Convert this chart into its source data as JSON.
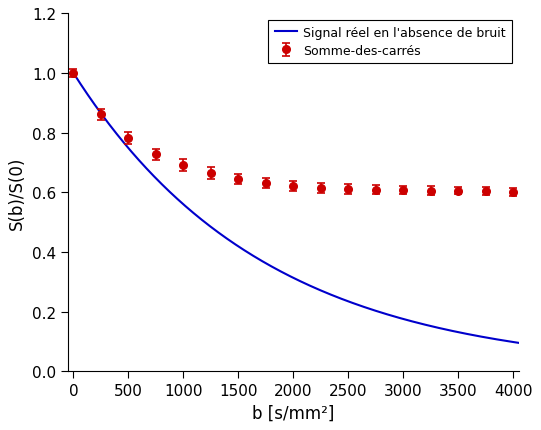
{
  "scatter_b": [
    0,
    250,
    500,
    750,
    1000,
    1250,
    1500,
    1750,
    2000,
    2250,
    2500,
    2750,
    3000,
    3250,
    3500,
    3750,
    4000
  ],
  "scatter_S": [
    1.0,
    0.862,
    0.783,
    0.728,
    0.692,
    0.665,
    0.645,
    0.632,
    0.622,
    0.615,
    0.612,
    0.608,
    0.607,
    0.606,
    0.606,
    0.604,
    0.602
  ],
  "scatter_err": [
    0.013,
    0.018,
    0.02,
    0.018,
    0.02,
    0.02,
    0.018,
    0.016,
    0.016,
    0.016,
    0.016,
    0.015,
    0.014,
    0.014,
    0.013,
    0.013,
    0.013
  ],
  "scatter_color": "#cc0000",
  "scatter_label": "Somme-des-carrés",
  "line_color": "#0000cc",
  "line_label": "Signal réel en l'absence de bruit",
  "D": 0.00058,
  "xlabel": "b [s/mm²]",
  "ylabel": "S(b)/S(0)",
  "xlim": [
    -50,
    4050
  ],
  "ylim": [
    0,
    1.2
  ],
  "xticks": [
    0,
    500,
    1000,
    1500,
    2000,
    2500,
    3000,
    3500,
    4000
  ],
  "yticks": [
    0,
    0.2,
    0.4,
    0.6,
    0.8,
    1.0,
    1.2
  ],
  "figsize": [
    5.41,
    4.31
  ],
  "dpi": 100,
  "bg_color": "#ffffff"
}
